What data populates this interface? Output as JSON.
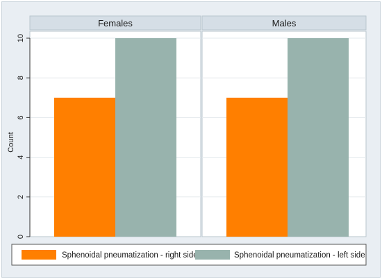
{
  "chart_data": {
    "type": "bar",
    "ylabel": "Count",
    "ylim": [
      0,
      10
    ],
    "yticks": [
      0,
      2,
      4,
      6,
      8,
      10
    ],
    "series": [
      {
        "name": "Sphenoidal pneumatization - right side",
        "color": "#ff7f00"
      },
      {
        "name": "Sphenoidal pneumatization - left side",
        "color": "#98b3ad"
      }
    ],
    "panels": [
      {
        "title": "Females",
        "values": [
          7,
          10
        ]
      },
      {
        "title": "Males",
        "values": [
          7,
          10
        ]
      }
    ],
    "grid": true,
    "legend_position": "bottom"
  }
}
